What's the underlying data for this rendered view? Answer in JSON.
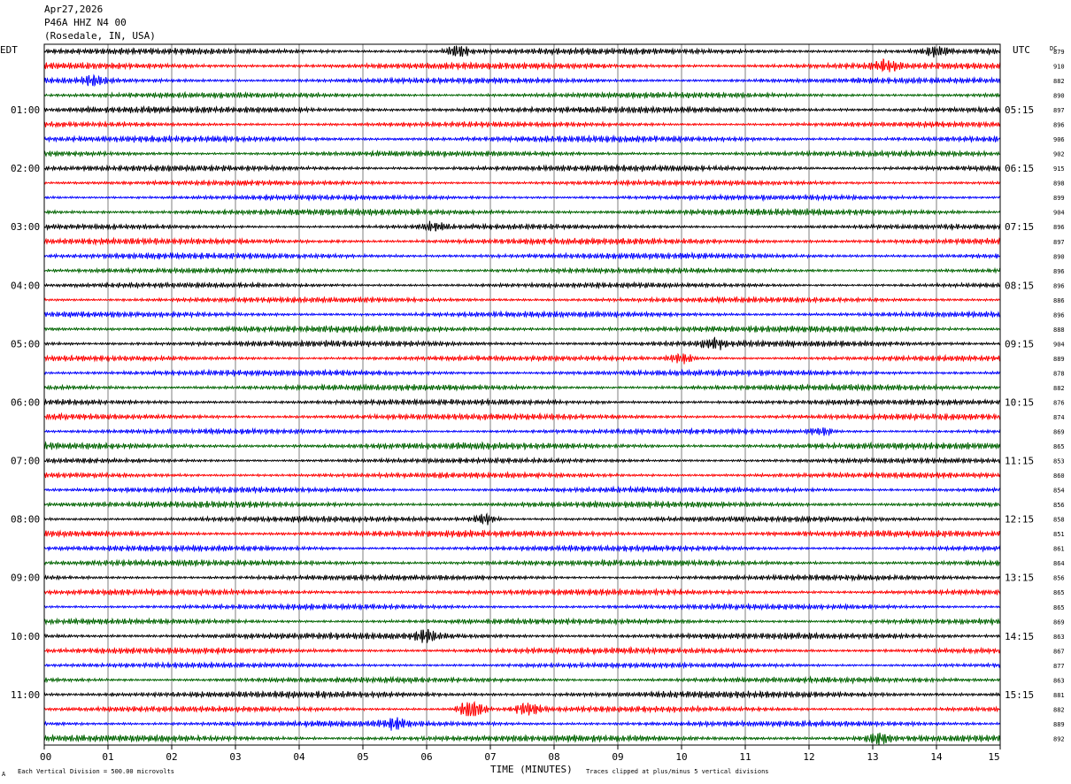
{
  "header": {
    "date": "Apr27,2026",
    "station": "P46A HHZ N4 00",
    "location": "(Rosedale, IN, USA)"
  },
  "labels": {
    "left_tz": "EDT",
    "right_tz": "UTC",
    "dc": "DC",
    "xlabel": "TIME (MINUTES)",
    "scale_note": "Each Vertical Division =  500.00 microvolts",
    "clip_note": "Traces clipped at plus/minus 5 vertical divisions",
    "corner_mark": "A"
  },
  "colors": {
    "trace_cycle": [
      "#000000",
      "#ff0000",
      "#0000ff",
      "#006400"
    ],
    "grid": "#000000"
  },
  "chart_data": {
    "type": "line",
    "x_range": [
      0,
      15
    ],
    "x_ticks": [
      "00",
      "01",
      "02",
      "03",
      "04",
      "05",
      "06",
      "07",
      "08",
      "09",
      "10",
      "11",
      "12",
      "13",
      "14",
      "15"
    ],
    "left_hour_labels": [
      "01:00",
      "02:00",
      "03:00",
      "04:00",
      "05:00",
      "06:00",
      "07:00",
      "08:00",
      "09:00",
      "10:00",
      "11:00"
    ],
    "right_hour_labels": [
      "05:15",
      "06:15",
      "07:15",
      "08:15",
      "09:15",
      "10:15",
      "11:15",
      "12:15",
      "13:15",
      "14:15",
      "15:15"
    ],
    "dc_offsets": [
      879,
      910,
      882,
      890,
      897,
      896,
      906,
      902,
      915,
      898,
      899,
      904,
      896,
      897,
      890,
      896,
      896,
      886,
      896,
      888,
      904,
      889,
      878,
      882,
      876,
      874,
      869,
      865,
      853,
      860,
      854,
      856,
      858,
      851,
      861,
      864,
      856,
      865,
      865,
      869,
      863,
      867,
      877,
      863,
      881,
      882,
      889,
      892
    ],
    "rows_per_hour": 4,
    "minutes_per_row": 15,
    "events": [
      {
        "row": 0,
        "minute": 6.5,
        "amp": 1.8
      },
      {
        "row": 0,
        "minute": 14.0,
        "amp": 1.6
      },
      {
        "row": 1,
        "minute": 13.2,
        "amp": 1.5
      },
      {
        "row": 2,
        "minute": 0.8,
        "amp": 1.7
      },
      {
        "row": 12,
        "minute": 6.1,
        "amp": 1.6
      },
      {
        "row": 20,
        "minute": 10.5,
        "amp": 1.6
      },
      {
        "row": 21,
        "minute": 10.0,
        "amp": 1.9
      },
      {
        "row": 26,
        "minute": 12.2,
        "amp": 1.6
      },
      {
        "row": 32,
        "minute": 6.9,
        "amp": 1.8
      },
      {
        "row": 40,
        "minute": 6.0,
        "amp": 2.0
      },
      {
        "row": 45,
        "minute": 6.7,
        "amp": 4.2
      },
      {
        "row": 45,
        "minute": 7.6,
        "amp": 2.4
      },
      {
        "row": 46,
        "minute": 5.5,
        "amp": 1.6
      },
      {
        "row": 47,
        "minute": 13.1,
        "amp": 1.8
      }
    ]
  }
}
